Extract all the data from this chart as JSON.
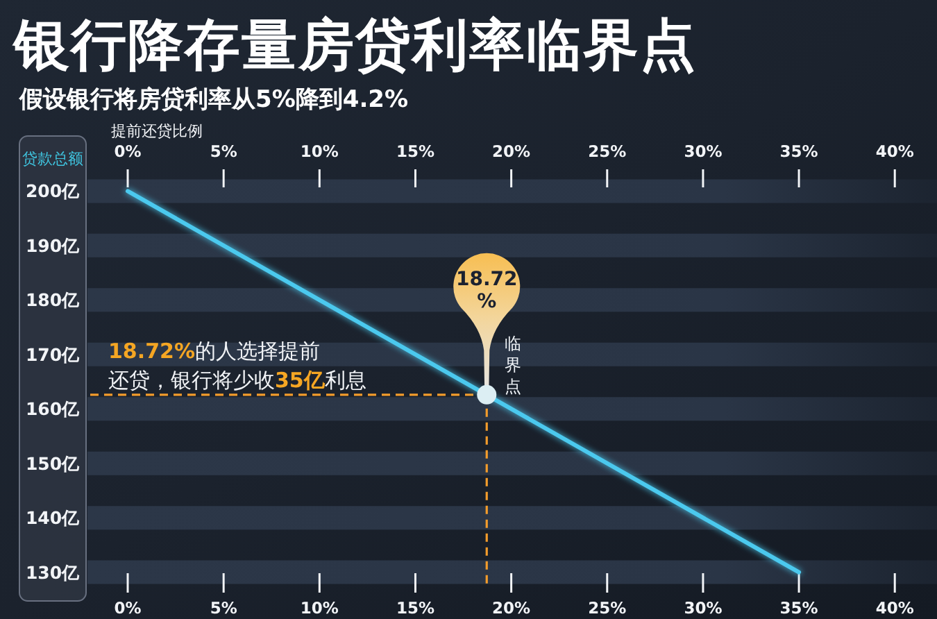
{
  "chart_data": {
    "type": "line",
    "title": "银行降存量房贷利率临界点",
    "subtitle": "假设银行将房贷利率从5%降到4.2%",
    "x2label": "提前还贷比例",
    "ylabel": "贷款总额",
    "series": [
      {
        "x": [
          0,
          35
        ],
        "values": [
          200,
          130
        ],
        "color": "#4cc9ee"
      },
      {
        "type": "scatter",
        "x": [
          18.72
        ],
        "values": [
          162.6
        ],
        "color": "#dceef3",
        "marker": "circle"
      }
    ],
    "xlim": [
      -2.1,
      42.2
    ],
    "xticks": [
      {
        "value": 0,
        "label": "0%"
      },
      {
        "value": 5,
        "label": "5%"
      },
      {
        "value": 10,
        "label": "10%"
      },
      {
        "value": 15,
        "label": "15%"
      },
      {
        "value": 20,
        "label": "20%"
      },
      {
        "value": 25,
        "label": "25%"
      },
      {
        "value": 30,
        "label": "30%"
      },
      {
        "value": 35,
        "label": "35%"
      },
      {
        "value": 40,
        "label": "40%"
      }
    ],
    "x2lim": [
      -2.1,
      42.2
    ],
    "x2ticks": [
      {
        "value": 0,
        "label": "0%"
      },
      {
        "value": 5,
        "label": "5%"
      },
      {
        "value": 10,
        "label": "10%"
      },
      {
        "value": 15,
        "label": "15%"
      },
      {
        "value": 20,
        "label": "20%"
      },
      {
        "value": 25,
        "label": "25%"
      },
      {
        "value": 30,
        "label": "30%"
      },
      {
        "value": 35,
        "label": "35%"
      },
      {
        "value": 40,
        "label": "40%"
      }
    ],
    "ylim": [
      130,
      200
    ],
    "yticks": [
      {
        "value": 130,
        "label": "130亿"
      },
      {
        "value": 140,
        "label": "140亿"
      },
      {
        "value": 150,
        "label": "150亿"
      },
      {
        "value": 160,
        "label": "160亿"
      },
      {
        "value": 170,
        "label": "170亿"
      },
      {
        "value": 180,
        "label": "180亿"
      },
      {
        "value": 190,
        "label": "190亿"
      },
      {
        "value": 200,
        "label": "200亿"
      }
    ],
    "grid": "y",
    "ref_lines": [
      {
        "axis": "y",
        "value": 162.6,
        "color": "#f39c2b",
        "line_style": "dashed"
      },
      {
        "axis": "x",
        "value": 18.72,
        "color": "#f39c2b",
        "line_style": "dashed"
      }
    ],
    "annotations": [
      "18.72%的人选择提前",
      "还贷，银行将少收35亿利息",
      "18.72%",
      "临界点"
    ]
  }
}
